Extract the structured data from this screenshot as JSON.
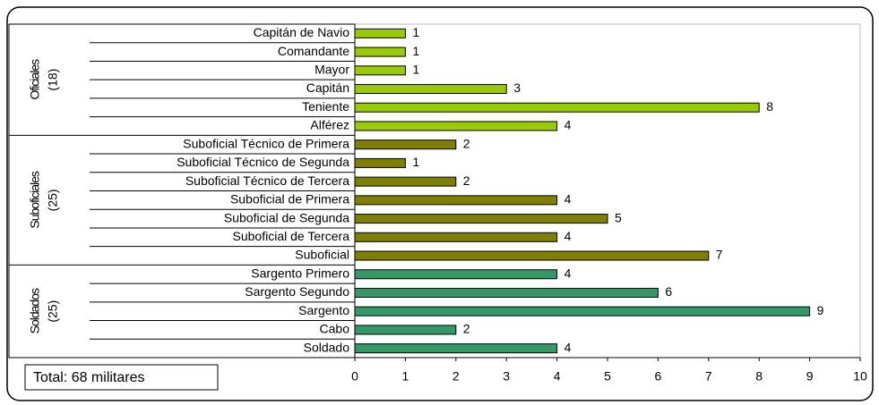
{
  "chart_data": {
    "type": "bar",
    "orientation": "horizontal",
    "annotation": "Total: 68 militares",
    "xlim": [
      0,
      10
    ],
    "xticks": [
      0,
      1,
      2,
      3,
      4,
      5,
      6,
      7,
      8,
      9,
      10
    ],
    "groups": [
      {
        "name": "Oficiales",
        "count_label": "(18)",
        "color": "#99cc00",
        "categories": [
          "Capitán de Navio",
          "Comandante",
          "Mayor",
          "Capitán",
          "Teniente",
          "Alférez"
        ],
        "values": [
          1,
          1,
          1,
          3,
          8,
          4
        ]
      },
      {
        "name": "Suboficiales",
        "count_label": "(25)",
        "color": "#808000",
        "categories": [
          "Suboficial Técnico de Primera",
          "Suboficial Técnico de Segunda",
          "Suboficial Técnico de Tercera",
          "Suboficial de Primera",
          "Suboficial de Segunda",
          "Suboficial de Tercera",
          "Suboficial"
        ],
        "values": [
          2,
          1,
          2,
          4,
          5,
          4,
          7
        ]
      },
      {
        "name": "Soldados",
        "count_label": "(25)",
        "color": "#339966",
        "categories": [
          "Sargento Primero",
          "Sargento Segundo",
          "Sargento",
          "Cabo",
          "Soldado"
        ],
        "values": [
          4,
          6,
          9,
          2,
          4
        ]
      }
    ]
  }
}
